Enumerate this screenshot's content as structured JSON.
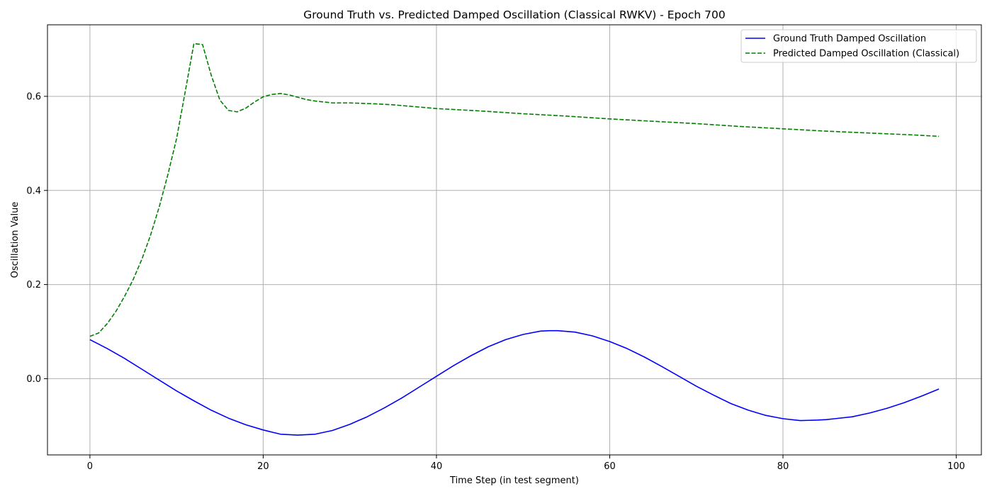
{
  "chart_data": {
    "type": "line",
    "title": "Ground Truth vs. Predicted Damped Oscillation (Classical RWKV) - Epoch 700",
    "xlabel": "Time Step (in test segment)",
    "ylabel": "Oscillation Value",
    "xlim": [
      -4.9,
      102.9
    ],
    "ylim": [
      -0.162,
      0.752
    ],
    "xticks": [
      0,
      20,
      40,
      60,
      80,
      100
    ],
    "xtick_labels": [
      "0",
      "20",
      "40",
      "60",
      "80",
      "100"
    ],
    "yticks": [
      0.0,
      0.2,
      0.4,
      0.6
    ],
    "ytick_labels": [
      "0.0",
      "0.2",
      "0.4",
      "0.6"
    ],
    "grid": true,
    "legend_position": "top-right",
    "series": [
      {
        "name": "Ground Truth Damped Oscillation",
        "color": "#0000ff",
        "style": "solid",
        "x": [
          0,
          2,
          4,
          6,
          8,
          10,
          12,
          14,
          16,
          18,
          20,
          22,
          24,
          26,
          28,
          30,
          32,
          34,
          36,
          38,
          40,
          42,
          44,
          46,
          48,
          50,
          52,
          53,
          54,
          56,
          58,
          60,
          62,
          64,
          66,
          68,
          70,
          72,
          74,
          76,
          78,
          80,
          82,
          84,
          85,
          86,
          88,
          90,
          92,
          94,
          96,
          98
        ],
        "y": [
          0.083,
          0.064,
          0.043,
          0.02,
          -0.003,
          -0.026,
          -0.047,
          -0.067,
          -0.084,
          -0.098,
          -0.109,
          -0.118,
          -0.12,
          -0.118,
          -0.11,
          -0.097,
          -0.081,
          -0.062,
          -0.041,
          -0.018,
          0.005,
          0.028,
          0.049,
          0.068,
          0.083,
          0.094,
          0.101,
          0.102,
          0.102,
          0.099,
          0.091,
          0.079,
          0.064,
          0.046,
          0.026,
          0.005,
          -0.016,
          -0.035,
          -0.053,
          -0.067,
          -0.078,
          -0.085,
          -0.089,
          -0.088,
          -0.087,
          -0.085,
          -0.081,
          -0.073,
          -0.063,
          -0.051,
          -0.037,
          -0.022
        ]
      },
      {
        "name": "Predicted Damped Oscillation (Classical)",
        "color": "#008000",
        "style": "dashed",
        "x": [
          0,
          1,
          2,
          3,
          4,
          5,
          6,
          7,
          8,
          9,
          10,
          11,
          12,
          13,
          14,
          15,
          16,
          17,
          18,
          19,
          20,
          21,
          22,
          23,
          24,
          25,
          26,
          28,
          30,
          33,
          35,
          40,
          45,
          50,
          55,
          60,
          65,
          70,
          75,
          80,
          85,
          90,
          95,
          98
        ],
        "y": [
          0.09,
          0.097,
          0.117,
          0.143,
          0.175,
          0.211,
          0.254,
          0.305,
          0.365,
          0.434,
          0.51,
          0.61,
          0.712,
          0.71,
          0.645,
          0.592,
          0.57,
          0.567,
          0.575,
          0.588,
          0.599,
          0.604,
          0.606,
          0.603,
          0.598,
          0.593,
          0.59,
          0.586,
          0.586,
          0.584,
          0.582,
          0.574,
          0.569,
          0.563,
          0.558,
          0.552,
          0.547,
          0.542,
          0.536,
          0.531,
          0.526,
          0.522,
          0.518,
          0.515
        ]
      }
    ]
  }
}
